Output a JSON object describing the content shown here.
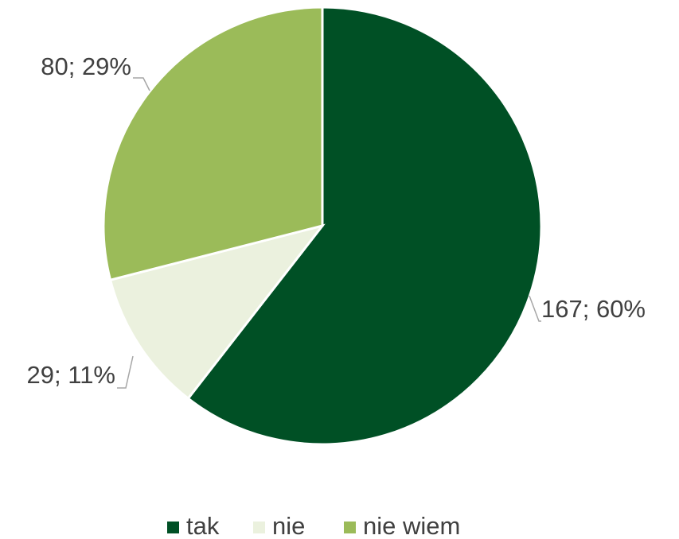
{
  "chart_data": {
    "type": "pie",
    "categories": [
      "tak",
      "nie",
      "nie wiem"
    ],
    "values": [
      167,
      29,
      80
    ],
    "value_labels": [
      "167; 60%",
      "29; 11%",
      "80; 29%"
    ],
    "colors": [
      "#005025",
      "#ebf1de",
      "#9bbb59"
    ],
    "legend": "bottom"
  }
}
